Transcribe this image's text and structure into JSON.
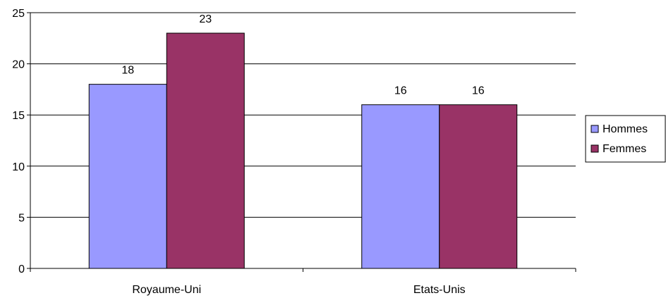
{
  "chart_data": {
    "type": "bar",
    "categories": [
      "Royaume-Uni",
      "Etats-Unis"
    ],
    "series": [
      {
        "name": "Hommes",
        "values": [
          18,
          16
        ],
        "color": "#9999ff"
      },
      {
        "name": "Femmes",
        "values": [
          23,
          16
        ],
        "color": "#993366"
      }
    ],
    "ylim": [
      0,
      25
    ],
    "yticks": [
      0,
      5,
      10,
      15,
      20,
      25
    ],
    "grid": true,
    "legend": "right",
    "data_labels": true
  }
}
